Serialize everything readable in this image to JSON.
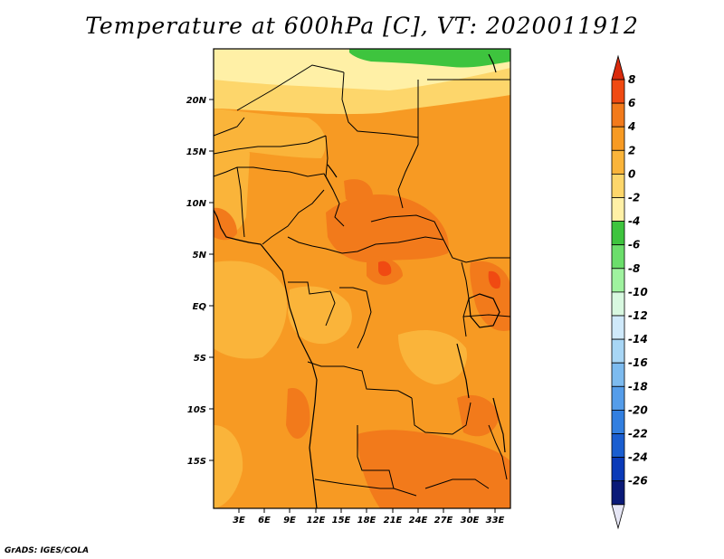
{
  "title": "Temperature at 600hPa [C], VT: 2020011912",
  "credit": "GrADS: IGES/COLA",
  "map": {
    "lat_ticks": [
      "20N",
      "15N",
      "10N",
      "5N",
      "EQ",
      "5S",
      "10S",
      "15S"
    ],
    "lon_ticks": [
      "3E",
      "6E",
      "9E",
      "12E",
      "15E",
      "18E",
      "21E",
      "24E",
      "27E",
      "30E",
      "33E"
    ]
  },
  "colorbar": {
    "levels": [
      "8",
      "6",
      "4",
      "2",
      "0",
      "-2",
      "-4",
      "-6",
      "-8",
      "-10",
      "-12",
      "-14",
      "-16",
      "-18",
      "-20",
      "-22",
      "-24",
      "-26"
    ],
    "colors": [
      "#d92a0c",
      "#f04a12",
      "#f27a1b",
      "#f79a23",
      "#fab43a",
      "#fdd66b",
      "#fff0a6",
      "#3ec43e",
      "#6bde6b",
      "#9ff29f",
      "#d8f8e0",
      "#cfe9fa",
      "#a8d6f5",
      "#7dbbef",
      "#559dea",
      "#327fe0",
      "#1a5ed0",
      "#0a3ab8",
      "#0a1a78",
      "#e6e6f5"
    ]
  }
}
